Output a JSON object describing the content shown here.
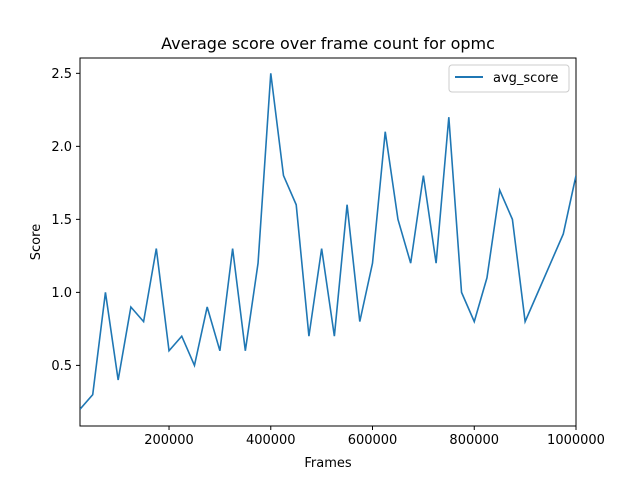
{
  "chart_data": {
    "type": "line",
    "title": "Average score over frame count for opmc",
    "xlabel": "Frames",
    "ylabel": "Score",
    "xlim": [
      25000,
      1000000
    ],
    "ylim": [
      0.085,
      2.605
    ],
    "x_ticks": [
      200000,
      400000,
      600000,
      800000,
      1000000
    ],
    "x_tick_labels": [
      "200000",
      "400000",
      "600000",
      "800000",
      "1000000"
    ],
    "y_ticks": [
      0.5,
      1.0,
      1.5,
      2.0,
      2.5
    ],
    "y_tick_labels": [
      "0.5",
      "1.0",
      "1.5",
      "2.0",
      "2.5"
    ],
    "grid": false,
    "legend": {
      "position": "top-right"
    },
    "series": [
      {
        "name": "avg_score",
        "color": "#1f77b4",
        "x": [
          25000,
          50000,
          75000,
          100000,
          125000,
          150000,
          175000,
          200000,
          225000,
          250000,
          275000,
          300000,
          325000,
          350000,
          375000,
          400000,
          425000,
          450000,
          475000,
          500000,
          525000,
          550000,
          575000,
          600000,
          625000,
          650000,
          675000,
          700000,
          725000,
          750000,
          775000,
          800000,
          825000,
          850000,
          875000,
          900000,
          925000,
          950000,
          975000,
          1000000
        ],
        "y": [
          0.2,
          0.3,
          1.0,
          0.4,
          0.9,
          0.8,
          1.3,
          0.6,
          0.7,
          0.5,
          0.9,
          0.6,
          1.3,
          0.6,
          1.2,
          2.5,
          1.8,
          1.6,
          0.7,
          1.3,
          0.7,
          1.6,
          0.8,
          1.2,
          2.1,
          1.5,
          1.2,
          1.8,
          1.2,
          2.2,
          1.0,
          0.8,
          1.1,
          1.7,
          1.5,
          0.8,
          1.0,
          1.2,
          1.4,
          1.8
        ]
      }
    ]
  }
}
